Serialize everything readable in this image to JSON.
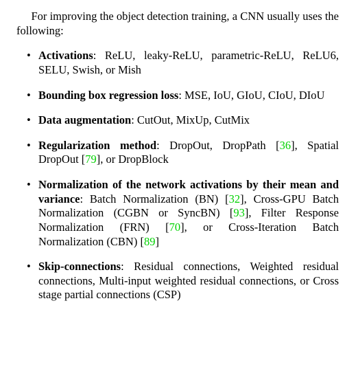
{
  "text_color": "#000000",
  "background_color": "#ffffff",
  "cite_color": "#00d200",
  "font_family": "Times New Roman",
  "font_size_pt": 12,
  "intro": "For improving the object detection training, a CNN usually uses the following:",
  "items": [
    {
      "label": "Activations",
      "text": ": ReLU, leaky-ReLU, parametric-ReLU, ReLU6, SELU, Swish, or Mish"
    },
    {
      "label": "Bounding box regression loss",
      "text": ": MSE, IoU, GIoU, CIoU, DIoU"
    },
    {
      "label": "Data augmentation",
      "text": ": CutOut, MixUp, CutMix"
    },
    {
      "label": "Regularization method",
      "text": ": DropOut, DropPath [36], Spatial DropOut [79], or DropBlock",
      "cites": [
        "36",
        "79"
      ]
    },
    {
      "label": "Normalization of the network activations by their mean and variance",
      "text": ": Batch Normalization (BN) [32], Cross-GPU Batch Normalization (CGBN or SyncBN) [93], Filter Response Normalization (FRN) [70], or Cross-Iteration Batch Normalization (CBN) [89]",
      "cites": [
        "32",
        "93",
        "70",
        "89"
      ]
    },
    {
      "label": "Skip-connections",
      "text": ": Residual connections, Weighted residual connections, Multi-input weighted residual connections, or Cross stage partial connections (CSP)"
    }
  ]
}
